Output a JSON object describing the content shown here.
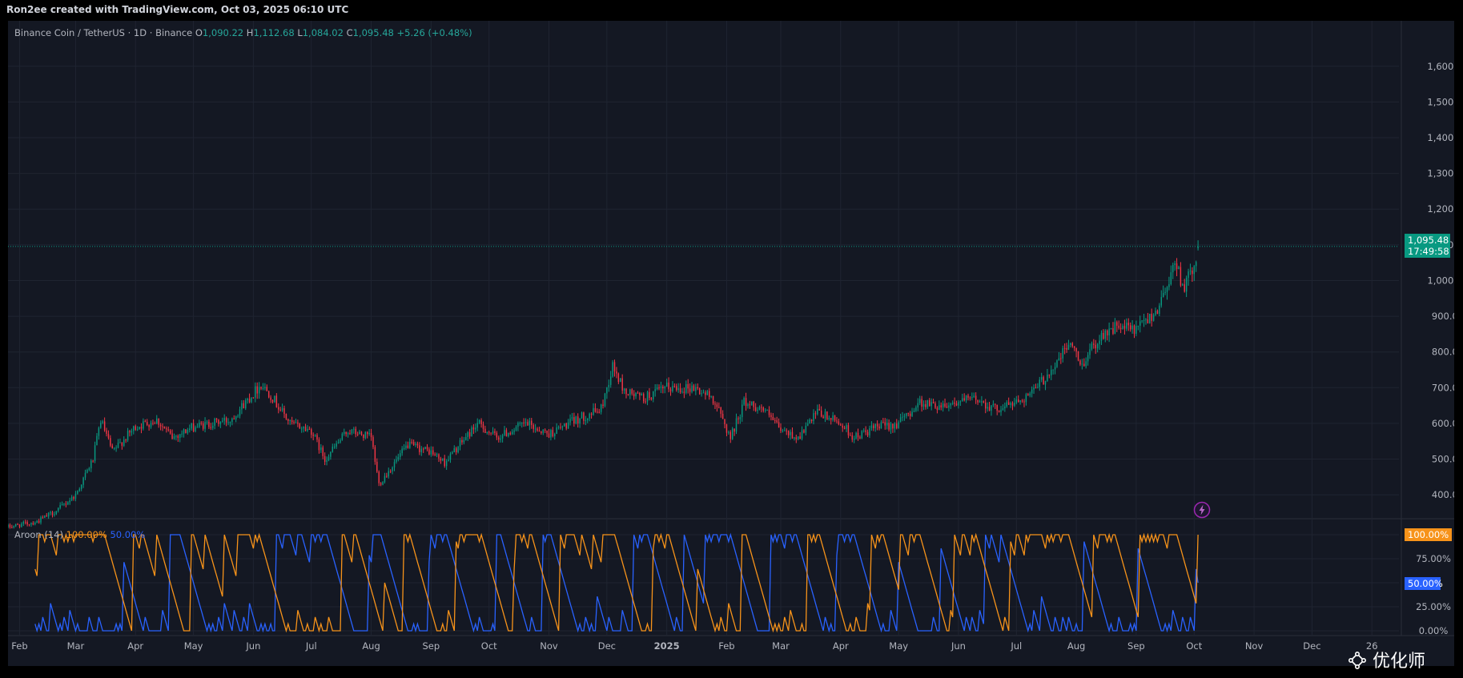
{
  "header": {
    "text": "Ron2ee created with TradingView.com, Oct 03, 2025 06:10 UTC"
  },
  "legend": {
    "title": "Binance Coin / TetherUS · 1D · Binance",
    "o_label": "O",
    "o_value": "1,090.22",
    "h_label": "H",
    "h_value": "1,112.68",
    "l_label": "L",
    "l_value": "1,084.02",
    "c_label": "C",
    "c_value": "1,095.48",
    "change": "+5.26 (+0.48%)"
  },
  "price_tag": {
    "price": "1,095.48",
    "countdown": "17:49:58"
  },
  "aroon": {
    "label": "Aroon (14)",
    "up_value": "100.00%",
    "down_value": "50.00%",
    "up_tag": "100.00%",
    "down_tag": "50.00%"
  },
  "watermark": {
    "text": "优化师"
  },
  "icons": {
    "bolt": "bolt-icon",
    "watermark_logo": "network-logo-icon"
  },
  "colors": {
    "up": "#089981",
    "down": "#f23645",
    "aroon_up": "#f7931a",
    "aroon_down": "#2962ff",
    "background": "#141823"
  },
  "chart_data": [
    {
      "type": "candlestick",
      "title": "Binance Coin / TetherUS · 1D · Binance",
      "interval": "1D",
      "price_axis_ticks": [
        "1,600.00",
        "1,500.00",
        "1,400.00",
        "1,300.00",
        "1,200.00",
        "1,100.00",
        "1,000.00",
        "900.00",
        "800.00",
        "700.00",
        "600.00",
        "500.00",
        "400.00"
      ],
      "ylim": [
        360,
        1660
      ],
      "time_axis_ticks": [
        "Feb",
        "Mar",
        "Apr",
        "May",
        "Jun",
        "Jul",
        "Aug",
        "Sep",
        "Oct",
        "Nov",
        "Dec",
        "2025",
        "Feb",
        "Mar",
        "Apr",
        "May",
        "Jun",
        "Jul",
        "Aug",
        "Sep",
        "Oct",
        "Nov",
        "Dec",
        "26"
      ],
      "x_range": [
        "2024-01-26",
        "2026-01-15"
      ],
      "last_close": 1095.48,
      "grid": true,
      "series": [
        {
          "name": "BNBUSDT",
          "close_checkpoints": [
            [
              "2024-01-26",
              310
            ],
            [
              "2024-02-10",
              325
            ],
            [
              "2024-02-20",
              355
            ],
            [
              "2024-03-01",
              400
            ],
            [
              "2024-03-10",
              500
            ],
            [
              "2024-03-14",
              610
            ],
            [
              "2024-03-20",
              520
            ],
            [
              "2024-04-01",
              590
            ],
            [
              "2024-04-12",
              610
            ],
            [
              "2024-04-20",
              560
            ],
            [
              "2024-05-01",
              590
            ],
            [
              "2024-05-20",
              610
            ],
            [
              "2024-06-05",
              710
            ],
            [
              "2024-06-10",
              680
            ],
            [
              "2024-06-20",
              600
            ],
            [
              "2024-07-01",
              580
            ],
            [
              "2024-07-08",
              500
            ],
            [
              "2024-07-20",
              580
            ],
            [
              "2024-08-01",
              560
            ],
            [
              "2024-08-05",
              430
            ],
            [
              "2024-08-20",
              540
            ],
            [
              "2024-09-01",
              520
            ],
            [
              "2024-09-08",
              490
            ],
            [
              "2024-09-25",
              600
            ],
            [
              "2024-10-05",
              560
            ],
            [
              "2024-10-20",
              600
            ],
            [
              "2024-11-01",
              570
            ],
            [
              "2024-11-15",
              610
            ],
            [
              "2024-11-28",
              640
            ],
            [
              "2024-12-04",
              760
            ],
            [
              "2024-12-10",
              690
            ],
            [
              "2024-12-20",
              670
            ],
            [
              "2025-01-01",
              700
            ],
            [
              "2025-01-15",
              700
            ],
            [
              "2025-01-25",
              670
            ],
            [
              "2025-02-03",
              560
            ],
            [
              "2025-02-10",
              660
            ],
            [
              "2025-02-20",
              640
            ],
            [
              "2025-03-01",
              580
            ],
            [
              "2025-03-10",
              560
            ],
            [
              "2025-03-20",
              630
            ],
            [
              "2025-04-01",
              600
            ],
            [
              "2025-04-08",
              560
            ],
            [
              "2025-04-20",
              590
            ],
            [
              "2025-05-01",
              600
            ],
            [
              "2025-05-12",
              660
            ],
            [
              "2025-05-20",
              650
            ],
            [
              "2025-06-01",
              660
            ],
            [
              "2025-06-10",
              670
            ],
            [
              "2025-06-20",
              640
            ],
            [
              "2025-07-01",
              660
            ],
            [
              "2025-07-10",
              690
            ],
            [
              "2025-07-22",
              770
            ],
            [
              "2025-07-29",
              830
            ],
            [
              "2025-08-03",
              760
            ],
            [
              "2025-08-14",
              850
            ],
            [
              "2025-08-22",
              870
            ],
            [
              "2025-09-01",
              860
            ],
            [
              "2025-09-12",
              920
            ],
            [
              "2025-09-21",
              1050
            ],
            [
              "2025-09-26",
              980
            ],
            [
              "2025-10-01",
              1040
            ],
            [
              "2025-10-03",
              1095.48
            ]
          ]
        }
      ]
    },
    {
      "type": "line",
      "title": "Aroon (14)",
      "y_axis_ticks": [
        "100.00%",
        "75.00%",
        "50.00%",
        "25.00%",
        "0.00%"
      ],
      "ylim": [
        0,
        100
      ],
      "series": [
        {
          "name": "Aroon Up",
          "last_value": 100.0
        },
        {
          "name": "Aroon Down",
          "last_value": 50.0
        }
      ]
    }
  ]
}
